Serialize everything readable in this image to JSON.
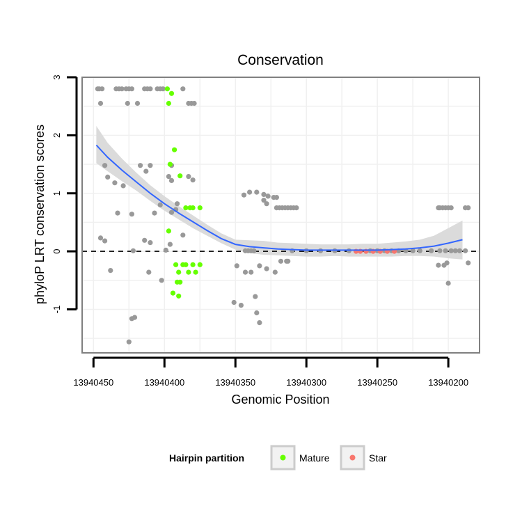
{
  "chart_data": {
    "type": "scatter",
    "title": "Conservation",
    "xlabel": "Genomic Position",
    "ylabel": "phyloP LRT conservation scores",
    "x_reversed": true,
    "xlim": [
      13940178,
      13940458
    ],
    "ylim": [
      -1.75,
      3.0
    ],
    "x_ticks": [
      13940450,
      13940400,
      13940350,
      13940300,
      13940250,
      13940200
    ],
    "x_tick_labels": [
      "13940450",
      "13940400",
      "13940350",
      "13940300",
      "13940250",
      "13940200"
    ],
    "y_ticks": [
      -1,
      0,
      1,
      2,
      3
    ],
    "y_tick_labels": [
      "-1",
      "0",
      "1",
      "2",
      "3"
    ],
    "reference_line": {
      "y": 0,
      "style": "dashed"
    },
    "colors": {
      "background_points": "#999999",
      "mature": "#66ff00",
      "star": "#f8766d",
      "smooth_line": "#3366ff",
      "ribbon": "#d9d9d9",
      "grid": "#f0f0f0",
      "panel_border": "#808080"
    },
    "legend": {
      "title": "Hairpin partition",
      "position": "bottom",
      "entries": [
        {
          "label": "Mature",
          "color": "#66ff00"
        },
        {
          "label": "Star",
          "color": "#f8766d"
        }
      ]
    },
    "series": [
      {
        "name": "other",
        "color": "#999999",
        "points": [
          [
            13940447,
            2.8
          ],
          [
            13940446,
            2.8
          ],
          [
            13940444,
            2.8
          ],
          [
            13940434,
            2.8
          ],
          [
            13940432,
            2.8
          ],
          [
            13940430,
            2.8
          ],
          [
            13940427,
            2.8
          ],
          [
            13940425,
            2.8
          ],
          [
            13940423,
            2.8
          ],
          [
            13940414,
            2.8
          ],
          [
            13940412,
            2.8
          ],
          [
            13940410,
            2.8
          ],
          [
            13940405,
            2.8
          ],
          [
            13940403,
            2.8
          ],
          [
            13940401,
            2.8
          ],
          [
            13940387,
            2.8
          ],
          [
            13940445,
            2.55
          ],
          [
            13940426,
            2.55
          ],
          [
            13940419,
            2.55
          ],
          [
            13940383,
            2.55
          ],
          [
            13940381,
            2.55
          ],
          [
            13940379,
            2.55
          ],
          [
            13940442,
            1.48
          ],
          [
            13940417,
            1.48
          ],
          [
            13940410,
            1.48
          ],
          [
            13940395,
            1.48
          ],
          [
            13940413,
            1.38
          ],
          [
            13940440,
            1.28
          ],
          [
            13940397,
            1.29
          ],
          [
            13940395,
            1.22
          ],
          [
            13940383,
            1.29
          ],
          [
            13940435,
            1.18
          ],
          [
            13940429,
            1.13
          ],
          [
            13940380,
            1.23
          ],
          [
            13940344,
            0.97
          ],
          [
            13940340,
            1.02
          ],
          [
            13940335,
            1.02
          ],
          [
            13940330,
            0.98
          ],
          [
            13940327,
            0.95
          ],
          [
            13940323,
            0.93
          ],
          [
            13940321,
            0.93
          ],
          [
            13940330,
            0.88
          ],
          [
            13940328,
            0.82
          ],
          [
            13940391,
            0.82
          ],
          [
            13940403,
            0.8
          ],
          [
            13940392,
            0.72
          ],
          [
            13940395,
            0.67
          ],
          [
            13940407,
            0.66
          ],
          [
            13940433,
            0.66
          ],
          [
            13940423,
            0.64
          ],
          [
            13940321,
            0.75
          ],
          [
            13940319,
            0.75
          ],
          [
            13940317,
            0.75
          ],
          [
            13940315,
            0.75
          ],
          [
            13940313,
            0.75
          ],
          [
            13940311,
            0.75
          ],
          [
            13940309,
            0.75
          ],
          [
            13940307,
            0.75
          ],
          [
            13940387,
            0.28
          ],
          [
            13940445,
            0.23
          ],
          [
            13940442,
            0.18
          ],
          [
            13940414,
            0.19
          ],
          [
            13940410,
            0.15
          ],
          [
            13940396,
            0.12
          ],
          [
            13940422,
            0.01
          ],
          [
            13940399,
            0.02
          ],
          [
            13940343,
            0.01
          ],
          [
            13940341,
            0.01
          ],
          [
            13940339,
            0.01
          ],
          [
            13940337,
            0.01
          ],
          [
            13940310,
            0.01
          ],
          [
            13940300,
            0.01
          ],
          [
            13940290,
            0.01
          ],
          [
            13940280,
            0.01
          ],
          [
            13940270,
            0.01
          ],
          [
            13940255,
            0.01
          ],
          [
            13940250,
            0.01
          ],
          [
            13940245,
            0.01
          ],
          [
            13940240,
            0.01
          ],
          [
            13940235,
            0.01
          ],
          [
            13940230,
            0.01
          ],
          [
            13940225,
            0.01
          ],
          [
            13940220,
            0.01
          ],
          [
            13940212,
            0.01
          ],
          [
            13940206,
            0.01
          ],
          [
            13940202,
            0.01
          ],
          [
            13940198,
            0.01
          ],
          [
            13940195,
            0.01
          ],
          [
            13940192,
            0.01
          ],
          [
            13940188,
            0.01
          ],
          [
            13940318,
            -0.17
          ],
          [
            13940328,
            -0.3
          ],
          [
            13940333,
            -0.25
          ],
          [
            13940339,
            -0.36
          ],
          [
            13940343,
            -0.36
          ],
          [
            13940349,
            -0.25
          ],
          [
            13940313,
            -0.17
          ],
          [
            13940314,
            -0.17
          ],
          [
            13940322,
            -0.36
          ],
          [
            13940438,
            -0.33
          ],
          [
            13940411,
            -0.36
          ],
          [
            13940402,
            -0.5
          ],
          [
            13940351,
            -0.88
          ],
          [
            13940346,
            -0.93
          ],
          [
            13940336,
            -0.78
          ],
          [
            13940335,
            -1.06
          ],
          [
            13940333,
            -1.23
          ],
          [
            13940423,
            -1.16
          ],
          [
            13940421,
            -1.14
          ],
          [
            13940425,
            -1.56
          ],
          [
            13940207,
            0.75
          ],
          [
            13940206,
            0.75
          ],
          [
            13940204,
            0.75
          ],
          [
            13940202,
            0.75
          ],
          [
            13940200,
            0.75
          ],
          [
            13940198,
            0.75
          ],
          [
            13940188,
            0.75
          ],
          [
            13940186,
            0.75
          ],
          [
            13940207,
            -0.24
          ],
          [
            13940203,
            -0.24
          ],
          [
            13940201,
            -0.2
          ],
          [
            13940200,
            -0.55
          ],
          [
            13940186,
            -0.2
          ]
        ]
      },
      {
        "name": "Mature",
        "color": "#66ff00",
        "points": [
          [
            13940398,
            2.8
          ],
          [
            13940395,
            2.72
          ],
          [
            13940397,
            2.55
          ],
          [
            13940393,
            1.75
          ],
          [
            13940396,
            1.5
          ],
          [
            13940389,
            1.3
          ],
          [
            13940385,
            0.75
          ],
          [
            13940382,
            0.75
          ],
          [
            13940380,
            0.75
          ],
          [
            13940375,
            0.75
          ],
          [
            13940397,
            0.35
          ],
          [
            13940392,
            -0.23
          ],
          [
            13940390,
            -0.36
          ],
          [
            13940387,
            -0.23
          ],
          [
            13940385,
            -0.23
          ],
          [
            13940383,
            -0.36
          ],
          [
            13940380,
            -0.23
          ],
          [
            13940378,
            -0.36
          ],
          [
            13940375,
            -0.23
          ],
          [
            13940391,
            -0.53
          ],
          [
            13940389,
            -0.53
          ],
          [
            13940394,
            -0.72
          ],
          [
            13940390,
            -0.77
          ]
        ]
      },
      {
        "name": "Star",
        "color": "#f8766d",
        "points": [
          [
            13940265,
            0.0
          ],
          [
            13940262,
            0.0
          ],
          [
            13940258,
            0.0
          ],
          [
            13940253,
            0.0
          ],
          [
            13940248,
            0.0
          ],
          [
            13940243,
            0.0
          ],
          [
            13940238,
            0.0
          ]
        ]
      }
    ],
    "smooth": {
      "name": "loess fit",
      "color": "#3366ff",
      "x": [
        13940448,
        13940440,
        13940430,
        13940420,
        13940410,
        13940400,
        13940390,
        13940380,
        13940370,
        13940360,
        13940350,
        13940340,
        13940330,
        13940320,
        13940310,
        13940300,
        13940290,
        13940280,
        13940270,
        13940260,
        13940250,
        13940240,
        13940230,
        13940220,
        13940210,
        13940200,
        13940190
      ],
      "y": [
        1.83,
        1.62,
        1.4,
        1.2,
        1.0,
        0.82,
        0.66,
        0.51,
        0.36,
        0.22,
        0.12,
        0.08,
        0.06,
        0.04,
        0.03,
        0.02,
        0.02,
        0.02,
        0.02,
        0.02,
        0.02,
        0.03,
        0.04,
        0.06,
        0.09,
        0.14,
        0.2
      ],
      "lower": [
        1.52,
        1.38,
        1.21,
        1.05,
        0.87,
        0.7,
        0.55,
        0.4,
        0.27,
        0.14,
        0.03,
        -0.03,
        -0.06,
        -0.07,
        -0.08,
        -0.09,
        -0.09,
        -0.08,
        -0.09,
        -0.09,
        -0.09,
        -0.09,
        -0.08,
        -0.08,
        -0.09,
        -0.12,
        -0.14
      ],
      "upper": [
        2.16,
        1.87,
        1.6,
        1.36,
        1.14,
        0.95,
        0.78,
        0.62,
        0.46,
        0.31,
        0.2,
        0.19,
        0.18,
        0.15,
        0.14,
        0.13,
        0.12,
        0.12,
        0.12,
        0.13,
        0.13,
        0.15,
        0.17,
        0.2,
        0.27,
        0.4,
        0.53
      ]
    }
  }
}
